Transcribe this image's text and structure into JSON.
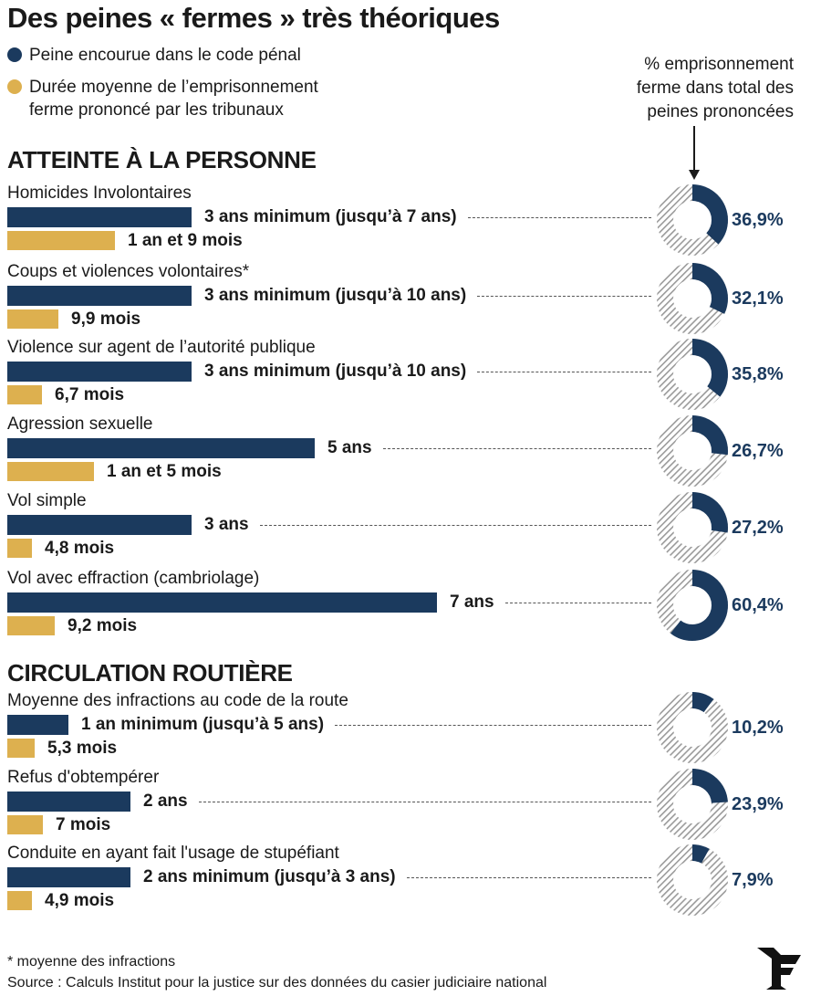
{
  "title": "Des peines « fermes » très théoriques",
  "legend": [
    {
      "label": "Peine encourue dans le code pénal",
      "color": "#1b3a5e"
    },
    {
      "label_line1": "Durée moyenne de l’emprisonnement",
      "label_line2": "ferme prononcé par les tribunaux",
      "color": "#ddb04f"
    }
  ],
  "pct_header": [
    "% emprisonnement",
    "ferme dans total des",
    "peines prononcées"
  ],
  "sections": [
    "ATTEINTE À LA PERSONNE",
    "CIRCULATION ROUTIÈRE"
  ],
  "footnote": "* moyenne des infractions",
  "source": "Source : Calculs Institut pour la justice sur des données du casier judiciaire national",
  "logo_icon": "le-figaro-f-logo",
  "chart_data": {
    "type": "bar",
    "orientation": "horizontal",
    "title": "Des peines « fermes » très théoriques",
    "unit": "years",
    "series_names": [
      "Peine encourue dans le code pénal",
      "Durée moyenne de l’emprisonnement ferme prononcé par les tribunaux",
      "% emprisonnement ferme dans total des peines prononcées"
    ],
    "colors": {
      "penalty": "#1b3a5e",
      "served": "#ddb04f",
      "donut_empty": "hatched-grey"
    },
    "rows": [
      {
        "section": 0,
        "label": "Homicides Involontaires",
        "penalty_years": 3,
        "penalty_text": "3 ans minimum (jusqu’à 7 ans)",
        "served_years": 1.75,
        "served_text": "1 an et 9 mois",
        "pct": 36.9,
        "pct_text": "36,9%"
      },
      {
        "section": 0,
        "label": "Coups et violences volontaires*",
        "penalty_years": 3,
        "penalty_text": "3 ans minimum (jusqu’à 10 ans)",
        "served_years": 0.825,
        "served_text": "9,9 mois",
        "pct": 32.1,
        "pct_text": "32,1%"
      },
      {
        "section": 0,
        "label": "Violence sur agent de l’autorité publique",
        "penalty_years": 3,
        "penalty_text": "3 ans minimum (jusqu’à 10 ans)",
        "served_years": 0.558,
        "served_text": "6,7 mois",
        "pct": 35.8,
        "pct_text": "35,8%"
      },
      {
        "section": 0,
        "label": "Agression sexuelle",
        "penalty_years": 5,
        "penalty_text": "5 ans",
        "served_years": 1.417,
        "served_text": "1 an et 5 mois",
        "pct": 26.7,
        "pct_text": "26,7%"
      },
      {
        "section": 0,
        "label": "Vol simple",
        "penalty_years": 3,
        "penalty_text": "3 ans",
        "served_years": 0.4,
        "served_text": "4,8 mois",
        "pct": 27.2,
        "pct_text": "27,2%"
      },
      {
        "section": 0,
        "label": "Vol avec effraction (cambriolage)",
        "penalty_years": 7,
        "penalty_text": "7 ans",
        "served_years": 0.767,
        "served_text": "9,2 mois",
        "pct": 60.4,
        "pct_text": "60,4%"
      },
      {
        "section": 1,
        "label": "Moyenne des infractions au code de la route",
        "penalty_years": 1,
        "penalty_text": "1 an minimum (jusqu’à 5 ans)",
        "served_years": 0.442,
        "served_text": "5,3 mois",
        "pct": 10.2,
        "pct_text": "10,2%"
      },
      {
        "section": 1,
        "label": "Refus d'obtempérer",
        "penalty_years": 2,
        "penalty_text": "2 ans",
        "served_years": 0.583,
        "served_text": "7 mois",
        "pct": 23.9,
        "pct_text": "23,9%"
      },
      {
        "section": 1,
        "label": "Conduite en ayant fait l'usage de stupéfiant",
        "penalty_years": 2,
        "penalty_text": "2 ans minimum (jusqu’à 3 ans)",
        "served_years": 0.408,
        "served_text": "4,9 mois",
        "pct": 7.9,
        "pct_text": "7,9%"
      }
    ]
  }
}
